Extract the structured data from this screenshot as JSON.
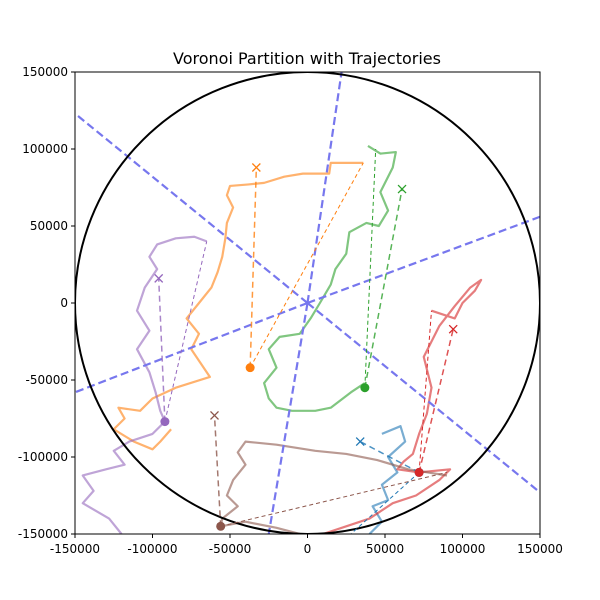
{
  "chart_data": {
    "type": "line",
    "title": "Voronoi Partition with Trajectories",
    "xlabel": "",
    "ylabel": "",
    "xlim": [
      -150000,
      150000
    ],
    "ylim": [
      -150000,
      150000
    ],
    "xticks": [
      -150000,
      -100000,
      -50000,
      0,
      50000,
      100000,
      150000
    ],
    "yticks": [
      -150000,
      -100000,
      -50000,
      0,
      50000,
      100000,
      150000
    ],
    "grid": false,
    "boundary_circle": {
      "center": [
        0,
        0
      ],
      "radius": 150000,
      "color": "#000000"
    },
    "voronoi_color": "#7777ee",
    "voronoi_edges": [
      {
        "from": [
          0,
          0
        ],
        "to": [
          150000,
          -123000
        ]
      },
      {
        "from": [
          0,
          0
        ],
        "to": [
          -150000,
          123000
        ]
      },
      {
        "from": [
          0,
          0
        ],
        "to": [
          150000,
          56000
        ]
      },
      {
        "from": [
          0,
          0
        ],
        "to": [
          -150000,
          -58000
        ]
      },
      {
        "from": [
          0,
          0
        ],
        "to": [
          22000,
          150000
        ]
      },
      {
        "from": [
          0,
          0
        ],
        "to": [
          -25000,
          -150000
        ]
      }
    ],
    "agents": [
      {
        "color": "#1f77b4",
        "current": [
          72000,
          -110000
        ],
        "target": [
          34000,
          -90000
        ],
        "trajectory": [
          [
            48000,
            -85000
          ],
          [
            60000,
            -80000
          ],
          [
            63000,
            -90000
          ],
          [
            52000,
            -100000
          ],
          [
            58000,
            -110000
          ],
          [
            48000,
            -118000
          ],
          [
            52000,
            -128000
          ],
          [
            42000,
            -132000
          ],
          [
            48000,
            -142000
          ],
          [
            40000,
            -150000
          ]
        ]
      },
      {
        "color": "#ff7f0e",
        "current": [
          -37000,
          -42000
        ],
        "target": [
          -33000,
          88000
        ],
        "trajectory": [
          [
            36000,
            91000
          ],
          [
            15000,
            91000
          ],
          [
            14000,
            84000
          ],
          [
            -3000,
            84000
          ],
          [
            -15000,
            82000
          ],
          [
            -28000,
            78000
          ],
          [
            -38000,
            77000
          ],
          [
            -50000,
            76000
          ],
          [
            -52000,
            70000
          ],
          [
            -48000,
            62000
          ],
          [
            -52000,
            52000
          ],
          [
            -53000,
            42000
          ],
          [
            -55000,
            30000
          ],
          [
            -58000,
            20000
          ],
          [
            -62000,
            10000
          ],
          [
            -70000,
            0
          ],
          [
            -78000,
            -10000
          ],
          [
            -70000,
            -20000
          ],
          [
            -75000,
            -30000
          ],
          [
            -63000,
            -48000
          ],
          [
            -85000,
            -55000
          ],
          [
            -100000,
            -62000
          ],
          [
            -108000,
            -70000
          ],
          [
            -122000,
            -68000
          ],
          [
            -118000,
            -75000
          ],
          [
            -125000,
            -82000
          ],
          [
            -112000,
            -90000
          ],
          [
            -100000,
            -95000
          ],
          [
            -95000,
            -90000
          ],
          [
            -88000,
            -82000
          ]
        ]
      },
      {
        "color": "#2ca02c",
        "current": [
          37000,
          -55000
        ],
        "target": [
          61000,
          74000
        ],
        "trajectory": [
          [
            39000,
            102000
          ],
          [
            47000,
            97000
          ],
          [
            57000,
            98000
          ],
          [
            55000,
            88000
          ],
          [
            47000,
            72000
          ],
          [
            52000,
            60000
          ],
          [
            46000,
            50000
          ],
          [
            38000,
            52000
          ],
          [
            27000,
            46000
          ],
          [
            25000,
            32000
          ],
          [
            18000,
            22000
          ],
          [
            15000,
            12000
          ],
          [
            8000,
            0
          ],
          [
            2000,
            -10000
          ],
          [
            -5000,
            -20000
          ],
          [
            -18000,
            -22000
          ],
          [
            -25000,
            -30000
          ],
          [
            -20000,
            -42000
          ],
          [
            -28000,
            -52000
          ],
          [
            -25000,
            -62000
          ],
          [
            -20000,
            -68000
          ],
          [
            -10000,
            -70000
          ],
          [
            5000,
            -70000
          ],
          [
            15000,
            -68000
          ],
          [
            28000,
            -58000
          ],
          [
            37000,
            -52000
          ]
        ]
      },
      {
        "color": "#d62728",
        "current": [
          72000,
          -110000
        ],
        "target": [
          94000,
          -17000
        ],
        "trajectory": [
          [
            80000,
            -5000
          ],
          [
            95000,
            -10000
          ],
          [
            100000,
            0
          ],
          [
            108000,
            8000
          ],
          [
            112000,
            15000
          ],
          [
            105000,
            10000
          ],
          [
            95000,
            -2000
          ],
          [
            85000,
            -15000
          ],
          [
            75000,
            -35000
          ],
          [
            80000,
            -55000
          ],
          [
            77000,
            -72000
          ],
          [
            72000,
            -85000
          ],
          [
            68000,
            -98000
          ],
          [
            62000,
            -103000
          ],
          [
            58000,
            -108000
          ],
          [
            72000,
            -110000
          ],
          [
            92000,
            -108000
          ],
          [
            85000,
            -115000
          ],
          [
            70000,
            -125000
          ],
          [
            55000,
            -130000
          ],
          [
            40000,
            -140000
          ],
          [
            25000,
            -145000
          ],
          [
            10000,
            -150000
          ]
        ]
      },
      {
        "color": "#9467bd",
        "current": [
          -92000,
          -77000
        ],
        "target": [
          -96000,
          16000
        ],
        "trajectory": [
          [
            -65000,
            40000
          ],
          [
            -73000,
            43000
          ],
          [
            -85000,
            42000
          ],
          [
            -97000,
            38000
          ],
          [
            -102000,
            30000
          ],
          [
            -97000,
            22000
          ],
          [
            -105000,
            10000
          ],
          [
            -110000,
            -5000
          ],
          [
            -102000,
            -18000
          ],
          [
            -110000,
            -30000
          ],
          [
            -102000,
            -45000
          ],
          [
            -98000,
            -58000
          ],
          [
            -95000,
            -70000
          ],
          [
            -92000,
            -77000
          ],
          [
            -100000,
            -85000
          ],
          [
            -115000,
            -90000
          ],
          [
            -125000,
            -96000
          ],
          [
            -118000,
            -105000
          ],
          [
            -130000,
            -108000
          ],
          [
            -145000,
            -112000
          ],
          [
            -138000,
            -122000
          ],
          [
            -145000,
            -130000
          ],
          [
            -128000,
            -140000
          ],
          [
            -120000,
            -150000
          ]
        ]
      },
      {
        "color": "#8c564b",
        "current": [
          -56000,
          -145000
        ],
        "target": [
          -60000,
          -73000
        ],
        "trajectory": [
          [
            90000,
            -112000
          ],
          [
            65000,
            -108000
          ],
          [
            45000,
            -102000
          ],
          [
            25000,
            -98000
          ],
          [
            5000,
            -96000
          ],
          [
            -20000,
            -92000
          ],
          [
            -40000,
            -90000
          ],
          [
            -45000,
            -97000
          ],
          [
            -40000,
            -105000
          ],
          [
            -48000,
            -115000
          ],
          [
            -52000,
            -125000
          ],
          [
            -45000,
            -132000
          ],
          [
            -55000,
            -140000
          ],
          [
            -56000,
            -145000
          ],
          [
            -40000,
            -142000
          ],
          [
            -20000,
            -146000
          ],
          [
            -5000,
            -150000
          ]
        ]
      }
    ],
    "connectors": [
      {
        "color": "#1f77b4",
        "from": [
          72000,
          -110000
        ],
        "to": [
          28000,
          -150000
        ]
      },
      {
        "color": "#ff7f0e",
        "from": [
          -37000,
          -42000
        ],
        "to": [
          36000,
          91000
        ]
      },
      {
        "color": "#2ca02c",
        "from": [
          37000,
          -55000
        ],
        "to": [
          44000,
          100000
        ]
      },
      {
        "color": "#d62728",
        "from": [
          72000,
          -110000
        ],
        "to": [
          80000,
          -5000
        ]
      },
      {
        "color": "#9467bd",
        "from": [
          -92000,
          -77000
        ],
        "to": [
          -65000,
          40000
        ]
      },
      {
        "color": "#8c564b",
        "from": [
          -56000,
          -145000
        ],
        "to": [
          90000,
          -110000
        ]
      }
    ]
  }
}
